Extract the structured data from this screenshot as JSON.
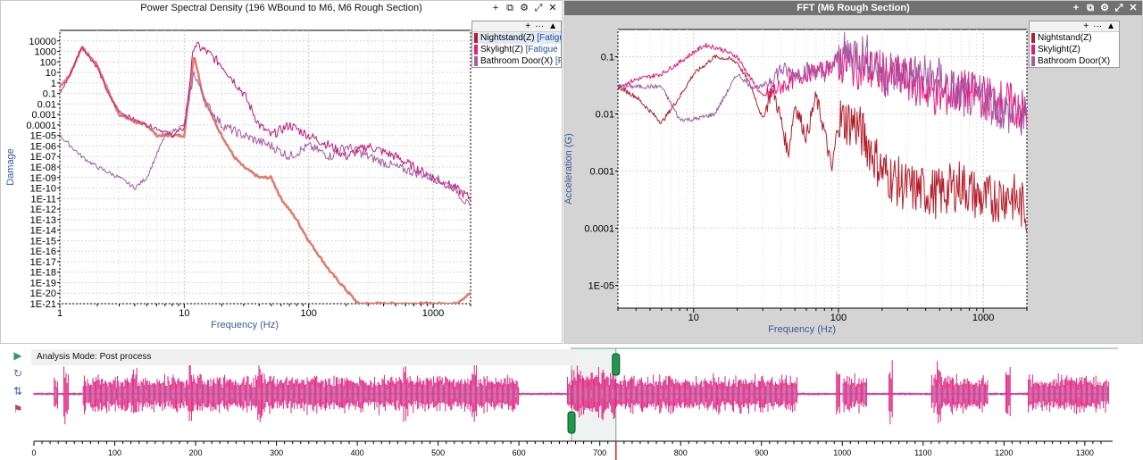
{
  "psd_panel": {
    "title": "Power Spectral Density (196 WBound to M6, M6 Rough Section)",
    "controls": [
      "+",
      "⧉",
      "⚙",
      "⤢",
      "✕"
    ],
    "legend_controls": [
      "+",
      "···",
      "▲"
    ],
    "legend": [
      {
        "label": "Nightstand(Z)",
        "file": "[Fatigu",
        "color": "#b41e2c"
      },
      {
        "label": "Skylight(Z)",
        "file": "[Fatigue D",
        "color": "#e8197e"
      },
      {
        "label": "Bathroom Door(X)",
        "file": "[F",
        "color": "#a55aa5"
      }
    ],
    "chart_data": {
      "type": "line",
      "title": "Power Spectral Density (196 WBound to M6, M6 Rough Section)",
      "xlabel": "Frequency (Hz)",
      "ylabel": "Damage",
      "xscale": "log",
      "yscale": "log",
      "xlim": [
        1,
        2000
      ],
      "ylim": [
        1e-21,
        100000
      ],
      "x_ticks": [
        "1",
        "10",
        "100",
        "1000"
      ],
      "y_ticks": [
        "10000",
        "1000",
        "100",
        "10",
        "1",
        "0.1",
        "0.01",
        "0.001",
        "0.0001",
        "1E-05",
        "1E-06",
        "1E-07",
        "1E-08",
        "1E-09",
        "1E-10",
        "1E-11",
        "1E-12",
        "1E-13",
        "1E-14",
        "1E-15",
        "1E-16",
        "1E-17",
        "1E-18",
        "1E-19",
        "1E-20",
        "1E-21"
      ],
      "grid": true,
      "legend_position": "top-right",
      "series": [
        {
          "name": "Nightstand(Z) [Fatigu",
          "color": "#e07a6e",
          "x": [
            1,
            1.2,
            1.5,
            2,
            2.5,
            3,
            4,
            5,
            6,
            8,
            10,
            12,
            14,
            18,
            25,
            30,
            40,
            50,
            60,
            80,
            100,
            150,
            250,
            300,
            500,
            1000,
            1500,
            2000
          ],
          "y": [
            0.5,
            5,
            2500,
            50,
            0.1,
            0.001,
            0.0002,
            0.0001,
            1e-05,
            1e-05,
            1e-05,
            500,
            0.1,
            0.0001,
            1e-07,
            1e-08,
            1e-09,
            1e-09,
            1e-11,
            1e-13,
            1e-15,
            1e-18,
            1e-21,
            1e-21,
            1e-21,
            1e-21,
            1e-21,
            1e-20
          ]
        },
        {
          "name": "Skylight(Z) [Fatigue D",
          "color": "#c0187a",
          "x": [
            1,
            1.2,
            1.5,
            2,
            2.5,
            3,
            4,
            5,
            6,
            8,
            10,
            12,
            15,
            20,
            30,
            40,
            50,
            70,
            100,
            150,
            200,
            300,
            500,
            700,
            1000,
            1500,
            2000
          ],
          "y": [
            0.1,
            5,
            3000,
            30,
            0.05,
            0.002,
            0.0003,
            0.0001,
            5e-05,
            1e-05,
            5e-05,
            5000,
            1000,
            50,
            0.1,
            0.0001,
            1e-05,
            0.0001,
            1e-05,
            1e-06,
            1e-07,
            1e-06,
            1e-07,
            1e-08,
            1e-09,
            1e-10,
            1e-11
          ]
        },
        {
          "name": "Bathroom Door(X) [F",
          "color": "#a55aa5",
          "x": [
            1,
            1.5,
            2,
            3,
            4,
            5,
            7,
            10,
            12,
            15,
            20,
            30,
            50,
            70,
            100,
            150,
            200,
            300,
            500,
            1000,
            1500,
            2000
          ],
          "y": [
            1e-05,
            1e-07,
            1e-08,
            1e-09,
            1e-10,
            1e-09,
            1e-05,
            0.0001,
            10,
            0.01,
            0.0001,
            1e-05,
            1e-06,
            1e-07,
            1e-06,
            1e-07,
            1e-06,
            1e-07,
            1e-08,
            1e-09,
            1e-10,
            1e-12
          ]
        }
      ]
    }
  },
  "fft_panel": {
    "title": "FFT (M6 Rough Section)",
    "controls": [
      "+",
      "⧉",
      "⚙",
      "⤢",
      "✕"
    ],
    "legend_controls": [
      "+",
      "···",
      "▲"
    ],
    "legend": [
      {
        "label": "Nightstand(Z)",
        "color": "#b41e2c"
      },
      {
        "label": "Skylight(Z)",
        "color": "#e8197e"
      },
      {
        "label": "Bathroom Door(X)",
        "color": "#a55aa5"
      }
    ],
    "chart_data": {
      "type": "line",
      "title": "FFT (M6 Rough Section)",
      "xlabel": "Frequency (Hz)",
      "ylabel": "Acceleration (G)",
      "xscale": "log",
      "yscale": "log",
      "xlim": [
        3,
        2000
      ],
      "ylim": [
        4e-06,
        0.3
      ],
      "x_ticks": [
        "10",
        "100",
        "1000"
      ],
      "y_ticks": [
        "0.1",
        "0.01",
        "0.001",
        "0.0001",
        "1E-05"
      ],
      "grid": true,
      "legend_position": "top-right",
      "series": [
        {
          "name": "Nightstand(Z)",
          "color": "#b41e2c",
          "x": [
            3,
            4,
            6,
            8,
            10,
            14,
            18,
            20,
            25,
            30,
            35,
            40,
            45,
            50,
            60,
            70,
            80,
            90,
            100,
            130,
            160,
            200,
            300,
            500,
            700,
            1000,
            1500,
            2000
          ],
          "y": [
            0.03,
            0.02,
            0.007,
            0.02,
            0.05,
            0.1,
            0.09,
            0.08,
            0.03,
            0.008,
            0.03,
            0.008,
            0.002,
            0.015,
            0.004,
            0.02,
            0.005,
            0.001,
            0.008,
            0.007,
            0.003,
            0.001,
            0.0005,
            0.0004,
            0.0006,
            0.0003,
            0.0004,
            0.0002
          ]
        },
        {
          "name": "Skylight(Z)",
          "color": "#e8197e",
          "x": [
            3,
            4,
            6,
            8,
            10,
            12,
            15,
            20,
            25,
            30,
            40,
            50,
            60,
            80,
            100,
            130,
            160,
            200,
            300,
            500,
            700,
            1000,
            1500,
            2000
          ],
          "y": [
            0.03,
            0.04,
            0.05,
            0.08,
            0.12,
            0.16,
            0.14,
            0.1,
            0.04,
            0.02,
            0.03,
            0.04,
            0.05,
            0.06,
            0.08,
            0.07,
            0.06,
            0.05,
            0.04,
            0.02,
            0.025,
            0.02,
            0.015,
            0.01
          ]
        },
        {
          "name": "Bathroom Door(X)",
          "color": "#a55aa5",
          "x": [
            3,
            4,
            6,
            8,
            10,
            14,
            20,
            25,
            30,
            40,
            50,
            60,
            80,
            100,
            130,
            160,
            200,
            300,
            500,
            700,
            1000,
            1500,
            2000
          ],
          "y": [
            0.03,
            0.03,
            0.03,
            0.008,
            0.008,
            0.01,
            0.05,
            0.03,
            0.03,
            0.06,
            0.05,
            0.06,
            0.05,
            0.1,
            0.12,
            0.1,
            0.05,
            0.05,
            0.04,
            0.02,
            0.02,
            0.01,
            0.008
          ]
        }
      ]
    }
  },
  "timeline": {
    "mode_label": "Analysis Mode: Post process",
    "tools": [
      "play-icon",
      "refresh-icon",
      "sync-icon",
      "filter-icon"
    ],
    "tool_glyphs": [
      "▶",
      "↻",
      "⇅",
      "⚑"
    ],
    "x_ticks": [
      "0",
      "100",
      "200",
      "300",
      "400",
      "500",
      "600",
      "700",
      "800",
      "900",
      "1000",
      "1100",
      "1200",
      "1300"
    ],
    "xlim": [
      0,
      1330
    ],
    "selection": [
      665,
      720
    ],
    "cursor": 720,
    "waveform_color": "#e0207f",
    "waveform_overlay_color": "#b17bb3",
    "quiet_segments": [
      [
        0,
        25
      ],
      [
        30,
        60
      ],
      [
        600,
        660
      ],
      [
        945,
        1000
      ],
      [
        1030,
        1110
      ],
      [
        1180,
        1230
      ]
    ],
    "loud_bursts": [
      40,
      125,
      195,
      280,
      460,
      545,
      670,
      705,
      995,
      1060,
      1120,
      1205
    ]
  }
}
